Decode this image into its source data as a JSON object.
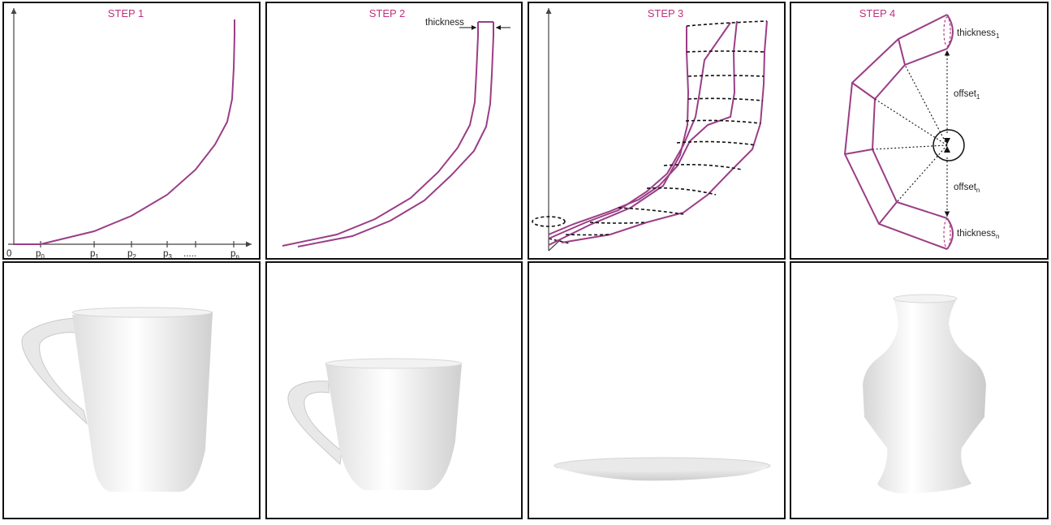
{
  "steps": {
    "step1": "STEP 1",
    "step2": "STEP 2",
    "step3": "STEP 3",
    "step4": "STEP 4"
  },
  "step1_labels": {
    "origin": "0",
    "p0": "p",
    "p0_sub": "0",
    "p1": "p",
    "p1_sub": "1",
    "p2": "p",
    "p2_sub": "2",
    "p3": "p",
    "p3_sub": "3",
    "dots": ".....",
    "pn": "p",
    "pn_sub": "n"
  },
  "step2_labels": {
    "thickness": "thickness"
  },
  "step4_labels": {
    "thickness1": "thickness",
    "thickness1_sub": "1",
    "offset1": "offset",
    "offset1_sub": "1",
    "offsetn": "offset",
    "offsetn_sub": "n",
    "thicknessn": "thickness",
    "thicknessn_sub": "n"
  },
  "colors": {
    "step_title": "#c0307f",
    "curve": "#9b3d86"
  },
  "renders": [
    "tall-mug",
    "cup",
    "plate",
    "vase"
  ]
}
